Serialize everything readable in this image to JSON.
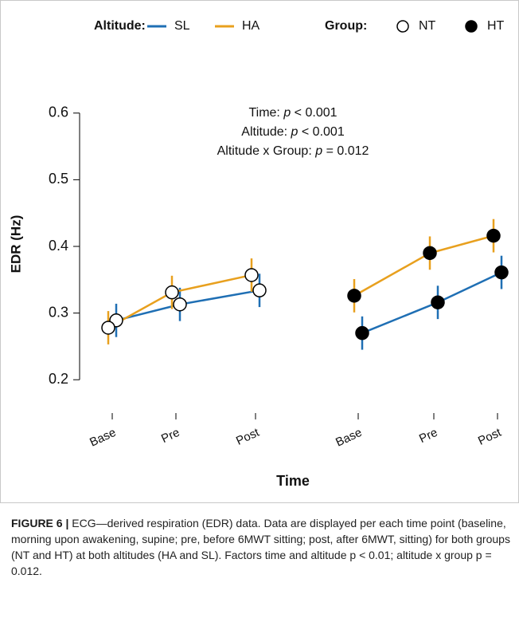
{
  "chart_data": {
    "type": "line",
    "legend": {
      "altitude_title": "Altitude:",
      "group_title": "Group:"
    },
    "altitudes": [
      {
        "name": "SL",
        "color": "#1f6fb4"
      },
      {
        "name": "HA",
        "color": "#e8a01e"
      }
    ],
    "groups": [
      {
        "name": "NT",
        "fill": "#ffffff"
      },
      {
        "name": "HT",
        "fill": "#000000"
      }
    ],
    "categories": [
      "Base",
      "Pre",
      "Post",
      "Base",
      "Pre",
      "Post"
    ],
    "series": [
      {
        "altitude": "SL",
        "group": "NT",
        "values": [
          0.289,
          0.313,
          0.334,
          null,
          null,
          null
        ],
        "errors": [
          0.025,
          0.025,
          0.025,
          null,
          null,
          null
        ]
      },
      {
        "altitude": "HA",
        "group": "NT",
        "values": [
          0.278,
          0.331,
          0.357,
          null,
          null,
          null
        ],
        "errors": [
          0.025,
          0.025,
          0.025,
          null,
          null,
          null
        ]
      },
      {
        "altitude": "SL",
        "group": "HT",
        "values": [
          null,
          null,
          null,
          0.27,
          0.316,
          0.361
        ],
        "errors": [
          null,
          null,
          null,
          0.025,
          0.025,
          0.025
        ]
      },
      {
        "altitude": "HA",
        "group": "HT",
        "values": [
          null,
          null,
          null,
          0.326,
          0.39,
          0.416
        ],
        "errors": [
          null,
          null,
          null,
          0.025,
          0.025,
          0.025
        ]
      }
    ],
    "annotations": [
      [
        "Time: ",
        "p",
        " < 0.001"
      ],
      [
        "Altitude: ",
        "p",
        " < 0.001"
      ],
      [
        "Altitude x Group: ",
        "p",
        " = 0.012"
      ]
    ],
    "xlabel": "Time",
    "ylabel": "EDR (Hz)",
    "ylim": [
      0.15,
      0.65
    ],
    "yticks": [
      0.2,
      0.3,
      0.4,
      0.5,
      0.6
    ]
  },
  "caption": {
    "label": "FIGURE 6 |",
    "text": " ECG—derived respiration (EDR) data. Data are displayed per each time point (baseline, morning upon awakening, supine; pre, before 6MWT sitting; post, after 6MWT, sitting) for both groups (NT and HT) at both altitudes (HA and SL). Factors time and altitude p < 0.01; altitude x group p = 0.012."
  }
}
